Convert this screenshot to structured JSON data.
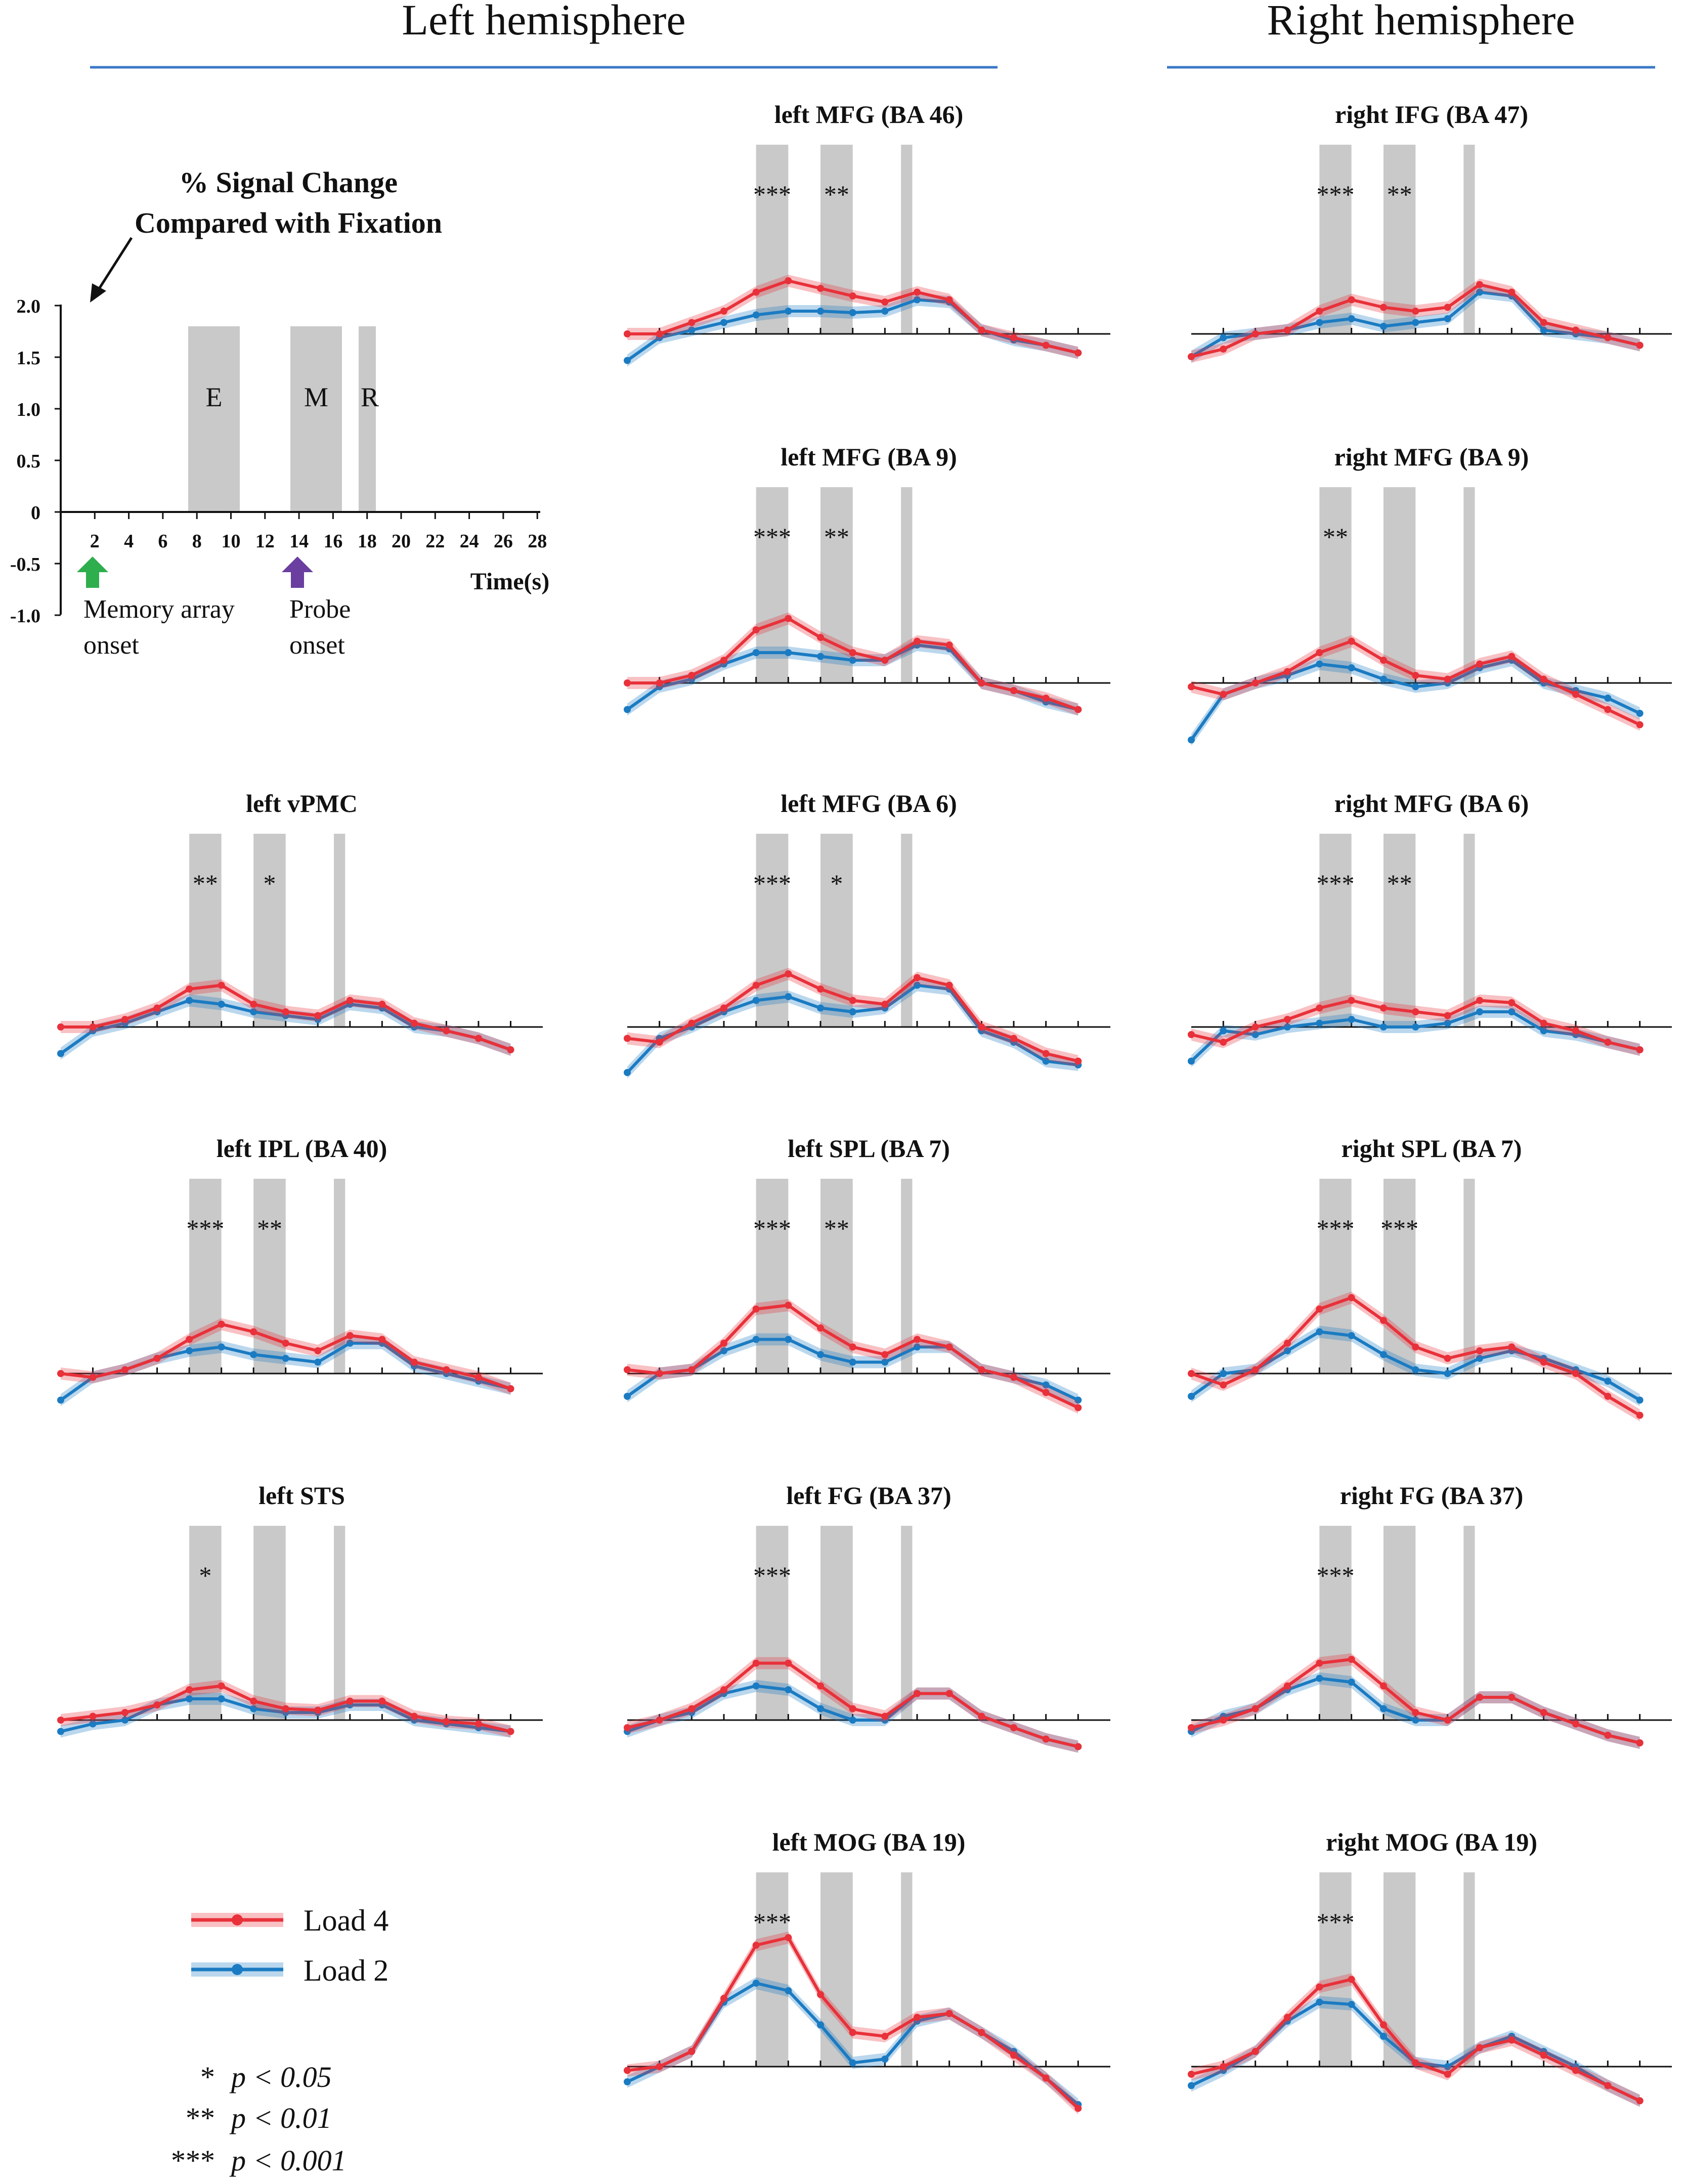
{
  "figure": {
    "left_hemisphere_label": "Left hemisphere",
    "right_hemisphere_label": "Right hemisphere",
    "colors": {
      "load4": "#e8313a",
      "load2": "#1b7bc2",
      "bar": "#c9c9c9",
      "header_line": "#3a78c8",
      "arrow_green": "#2fae4e",
      "arrow_purple": "#6a3fa0"
    }
  },
  "example": {
    "title_line1": "% Signal Change",
    "title_line2": "Compared with Fixation",
    "y_ticks": [
      "2.0",
      "1.5",
      "1.0",
      "0.5",
      "0",
      "-0.5",
      "-1.0"
    ],
    "x_ticks": [
      "2",
      "4",
      "6",
      "8",
      "10",
      "12",
      "14",
      "16",
      "18",
      "20",
      "22",
      "24",
      "26",
      "28"
    ],
    "x_label": "Time(s)",
    "phase_E": "E",
    "phase_M": "M",
    "phase_R": "R",
    "memory_label_1": "Memory array",
    "memory_label_2": "onset",
    "probe_label_1": "Probe",
    "probe_label_2": "onset"
  },
  "legend": {
    "load4": "Load 4",
    "load2": "Load 2",
    "sig1_stars": "*",
    "sig1_text": "p < 0.05",
    "sig2_stars": "**",
    "sig2_text": "p < 0.01",
    "sig3_stars": "***",
    "sig3_text": "p < 0.001"
  },
  "chart_data": [
    {
      "type": "line",
      "title": "left MFG (BA 46)",
      "stars": [
        "***",
        "**",
        ""
      ],
      "series": [
        {
          "name": "Load 4",
          "values": [
            0.0,
            0.0,
            0.15,
            0.3,
            0.55,
            0.7,
            0.6,
            0.5,
            0.42,
            0.55,
            0.45,
            0.05,
            -0.05,
            -0.15,
            -0.25
          ]
        },
        {
          "name": "Load 2",
          "values": [
            -0.35,
            -0.05,
            0.05,
            0.15,
            0.25,
            0.3,
            0.3,
            0.28,
            0.3,
            0.45,
            0.42,
            0.05,
            -0.08,
            -0.15,
            -0.25
          ]
        }
      ]
    },
    {
      "type": "line",
      "title": "right IFG (BA 47)",
      "stars": [
        "***",
        "**",
        ""
      ],
      "series": [
        {
          "name": "Load 4",
          "values": [
            -0.3,
            -0.2,
            0.0,
            0.05,
            0.3,
            0.45,
            0.35,
            0.3,
            0.35,
            0.65,
            0.55,
            0.15,
            0.05,
            -0.05,
            -0.15
          ]
        },
        {
          "name": "Load 2",
          "values": [
            -0.3,
            -0.05,
            0.0,
            0.05,
            0.15,
            0.2,
            0.1,
            0.15,
            0.2,
            0.55,
            0.5,
            0.05,
            0.0,
            -0.05,
            -0.15
          ]
        }
      ]
    },
    {
      "type": "line",
      "title": "left MFG (BA 9)",
      "stars": [
        "***",
        "**",
        ""
      ],
      "series": [
        {
          "name": "Load 4",
          "values": [
            0.0,
            0.0,
            0.1,
            0.3,
            0.7,
            0.85,
            0.6,
            0.4,
            0.3,
            0.55,
            0.5,
            0.0,
            -0.1,
            -0.2,
            -0.35
          ]
        },
        {
          "name": "Load 2",
          "values": [
            -0.35,
            -0.05,
            0.05,
            0.25,
            0.4,
            0.4,
            0.35,
            0.3,
            0.3,
            0.5,
            0.45,
            0.0,
            -0.1,
            -0.25,
            -0.35
          ]
        }
      ]
    },
    {
      "type": "line",
      "title": "right MFG (BA 9)",
      "stars": [
        "**",
        "",
        ""
      ],
      "series": [
        {
          "name": "Load 4",
          "values": [
            -0.05,
            -0.15,
            0.0,
            0.15,
            0.4,
            0.55,
            0.3,
            0.1,
            0.05,
            0.25,
            0.35,
            0.05,
            -0.15,
            -0.35,
            -0.55
          ]
        },
        {
          "name": "Load 2",
          "values": [
            -0.75,
            -0.15,
            0.0,
            0.1,
            0.25,
            0.2,
            0.05,
            -0.05,
            0.0,
            0.2,
            0.3,
            0.0,
            -0.1,
            -0.2,
            -0.4
          ]
        }
      ]
    },
    {
      "type": "line",
      "title": "left vPMC",
      "stars": [
        "**",
        "*",
        ""
      ],
      "series": [
        {
          "name": "Load 4",
          "values": [
            0.0,
            0.0,
            0.1,
            0.25,
            0.5,
            0.55,
            0.3,
            0.2,
            0.15,
            0.35,
            0.3,
            0.05,
            -0.05,
            -0.15,
            -0.3
          ]
        },
        {
          "name": "Load 2",
          "values": [
            -0.35,
            -0.05,
            0.05,
            0.2,
            0.35,
            0.3,
            0.2,
            0.15,
            0.1,
            0.3,
            0.25,
            0.0,
            -0.05,
            -0.15,
            -0.3
          ]
        }
      ]
    },
    {
      "type": "line",
      "title": "left MFG (BA 6)",
      "stars": [
        "***",
        "*",
        ""
      ],
      "series": [
        {
          "name": "Load 4",
          "values": [
            -0.15,
            -0.2,
            0.05,
            0.25,
            0.55,
            0.7,
            0.5,
            0.35,
            0.3,
            0.65,
            0.55,
            0.0,
            -0.15,
            -0.35,
            -0.45
          ]
        },
        {
          "name": "Load 2",
          "values": [
            -0.6,
            -0.15,
            0.0,
            0.2,
            0.35,
            0.4,
            0.25,
            0.2,
            0.25,
            0.55,
            0.5,
            -0.05,
            -0.2,
            -0.45,
            -0.5
          ]
        }
      ]
    },
    {
      "type": "line",
      "title": "right MFG (BA 6)",
      "stars": [
        "***",
        "**",
        ""
      ],
      "series": [
        {
          "name": "Load 4",
          "values": [
            -0.1,
            -0.2,
            0.0,
            0.1,
            0.25,
            0.35,
            0.25,
            0.2,
            0.15,
            0.35,
            0.32,
            0.05,
            -0.05,
            -0.2,
            -0.3
          ]
        },
        {
          "name": "Load 2",
          "values": [
            -0.45,
            -0.05,
            -0.1,
            0.0,
            0.05,
            0.1,
            0.0,
            0.0,
            0.05,
            0.2,
            0.2,
            -0.05,
            -0.1,
            -0.2,
            -0.3
          ]
        }
      ]
    },
    {
      "type": "line",
      "title": "left IPL (BA 40)",
      "stars": [
        "***",
        "**",
        ""
      ],
      "series": [
        {
          "name": "Load 4",
          "values": [
            0.0,
            -0.05,
            0.05,
            0.2,
            0.45,
            0.65,
            0.55,
            0.4,
            0.3,
            0.5,
            0.45,
            0.15,
            0.05,
            -0.05,
            -0.2
          ]
        },
        {
          "name": "Load 2",
          "values": [
            -0.35,
            -0.05,
            0.05,
            0.2,
            0.3,
            0.35,
            0.25,
            0.2,
            0.15,
            0.4,
            0.4,
            0.1,
            0.0,
            -0.1,
            -0.2
          ]
        }
      ]
    },
    {
      "type": "line",
      "title": "left SPL (BA 7)",
      "stars": [
        "***",
        "**",
        ""
      ],
      "series": [
        {
          "name": "Load 4",
          "values": [
            0.05,
            0.0,
            0.05,
            0.4,
            0.85,
            0.9,
            0.6,
            0.35,
            0.25,
            0.45,
            0.35,
            0.05,
            -0.05,
            -0.25,
            -0.45
          ]
        },
        {
          "name": "Load 2",
          "values": [
            -0.3,
            0.0,
            0.05,
            0.3,
            0.45,
            0.45,
            0.25,
            0.15,
            0.15,
            0.35,
            0.35,
            0.05,
            -0.05,
            -0.15,
            -0.35
          ]
        }
      ]
    },
    {
      "type": "line",
      "title": "right SPL (BA 7)",
      "stars": [
        "***",
        "***",
        ""
      ],
      "series": [
        {
          "name": "Load 4",
          "values": [
            0.0,
            -0.15,
            0.05,
            0.4,
            0.85,
            1.0,
            0.7,
            0.35,
            0.2,
            0.3,
            0.35,
            0.15,
            0.0,
            -0.3,
            -0.55
          ]
        },
        {
          "name": "Load 2",
          "values": [
            -0.3,
            0.0,
            0.05,
            0.3,
            0.55,
            0.5,
            0.25,
            0.05,
            0.0,
            0.2,
            0.3,
            0.2,
            0.05,
            -0.1,
            -0.35
          ]
        }
      ]
    },
    {
      "type": "line",
      "title": "left STS",
      "stars": [
        "*",
        "",
        ""
      ],
      "series": [
        {
          "name": "Load 4",
          "values": [
            0.0,
            0.05,
            0.1,
            0.2,
            0.4,
            0.45,
            0.25,
            0.15,
            0.13,
            0.25,
            0.25,
            0.05,
            -0.02,
            -0.05,
            -0.15
          ]
        },
        {
          "name": "Load 2",
          "values": [
            -0.15,
            -0.05,
            0.0,
            0.2,
            0.28,
            0.28,
            0.15,
            0.1,
            0.1,
            0.2,
            0.2,
            0.0,
            -0.05,
            -0.1,
            -0.15
          ]
        }
      ]
    },
    {
      "type": "line",
      "title": "left FG (BA 37)",
      "stars": [
        "***",
        "",
        ""
      ],
      "series": [
        {
          "name": "Load 4",
          "values": [
            -0.1,
            0.0,
            0.15,
            0.4,
            0.75,
            0.75,
            0.45,
            0.15,
            0.05,
            0.35,
            0.35,
            0.05,
            -0.1,
            -0.25,
            -0.35
          ]
        },
        {
          "name": "Load 2",
          "values": [
            -0.15,
            0.0,
            0.1,
            0.35,
            0.45,
            0.4,
            0.15,
            0.0,
            0.0,
            0.35,
            0.35,
            0.05,
            -0.1,
            -0.25,
            -0.35
          ]
        }
      ]
    },
    {
      "type": "line",
      "title": "right FG (BA 37)",
      "stars": [
        "***",
        "",
        ""
      ],
      "series": [
        {
          "name": "Load 4",
          "values": [
            -0.1,
            0.0,
            0.15,
            0.45,
            0.75,
            0.8,
            0.45,
            0.1,
            0.0,
            0.3,
            0.3,
            0.1,
            -0.05,
            -0.2,
            -0.3
          ]
        },
        {
          "name": "Load 2",
          "values": [
            -0.15,
            0.05,
            0.15,
            0.4,
            0.55,
            0.5,
            0.15,
            0.0,
            0.0,
            0.3,
            0.3,
            0.1,
            -0.05,
            -0.2,
            -0.3
          ]
        }
      ]
    },
    {
      "type": "line",
      "title": "left MOG (BA 19)",
      "stars": [
        "***",
        "",
        ""
      ],
      "series": [
        {
          "name": "Load 4",
          "values": [
            -0.05,
            0.0,
            0.2,
            0.9,
            1.6,
            1.7,
            0.95,
            0.45,
            0.4,
            0.65,
            0.7,
            0.45,
            0.15,
            -0.15,
            -0.55
          ]
        },
        {
          "name": "Load 2",
          "values": [
            -0.2,
            0.0,
            0.2,
            0.85,
            1.1,
            1.0,
            0.55,
            0.05,
            0.1,
            0.6,
            0.7,
            0.45,
            0.2,
            -0.15,
            -0.5
          ]
        }
      ]
    },
    {
      "type": "line",
      "title": "right MOG (BA 19)",
      "stars": [
        "***",
        "",
        ""
      ],
      "series": [
        {
          "name": "Load 4",
          "values": [
            -0.1,
            0.0,
            0.2,
            0.65,
            1.05,
            1.15,
            0.55,
            0.05,
            -0.1,
            0.25,
            0.35,
            0.15,
            -0.05,
            -0.25,
            -0.45
          ]
        },
        {
          "name": "Load 2",
          "values": [
            -0.25,
            -0.05,
            0.2,
            0.6,
            0.85,
            0.82,
            0.4,
            0.05,
            0.0,
            0.25,
            0.4,
            0.2,
            0.0,
            -0.25,
            -0.45
          ]
        }
      ]
    }
  ]
}
